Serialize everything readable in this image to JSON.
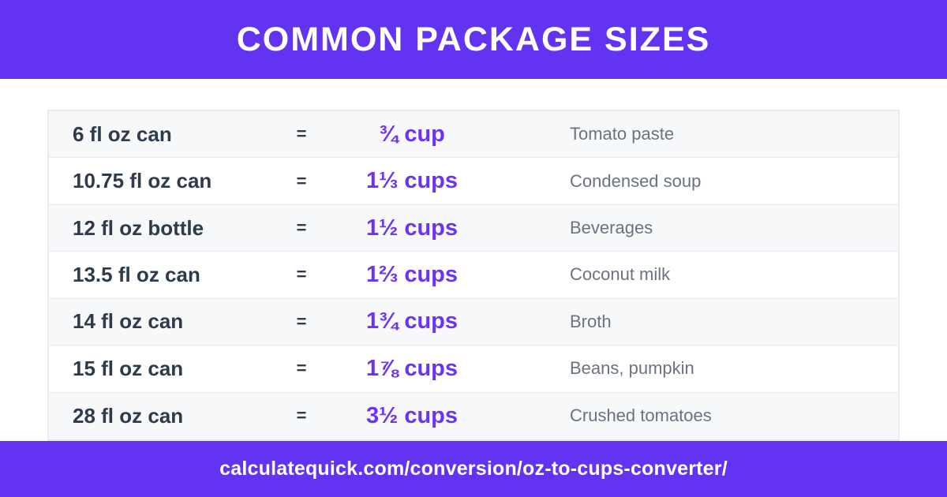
{
  "theme": {
    "primary": "#6233f0",
    "value_purple": "#6d33f3",
    "dark_text": "#2d3b4d",
    "muted_text": "#6b7280",
    "row_alt_bg": "#f7f8fa",
    "row_bg": "#ffffff",
    "border": "#e9ebee",
    "divider": "#e7e9ee"
  },
  "header": {
    "title": "COMMON PACKAGE SIZES"
  },
  "table": {
    "rows": [
      {
        "package": "6 fl oz can",
        "equals": "=",
        "cups": "¾ cup",
        "use": "Tomato paste"
      },
      {
        "package": "10.75 fl oz can",
        "equals": "=",
        "cups": "1⅓ cups",
        "use": "Condensed soup"
      },
      {
        "package": "12 fl oz bottle",
        "equals": "=",
        "cups": "1½ cups",
        "use": "Beverages"
      },
      {
        "package": "13.5 fl oz can",
        "equals": "=",
        "cups": "1⅔ cups",
        "use": "Coconut milk"
      },
      {
        "package": "14 fl oz can",
        "equals": "=",
        "cups": "1¾ cups",
        "use": "Broth"
      },
      {
        "package": "15 fl oz can",
        "equals": "=",
        "cups": "1⅞ cups",
        "use": "Beans, pumpkin"
      },
      {
        "package": "28 fl oz can",
        "equals": "=",
        "cups": "3½ cups",
        "use": "Crushed tomatoes"
      }
    ]
  },
  "footer": {
    "url": "calculatequick.com/conversion/oz-to-cups-converter/"
  },
  "chart_data": {
    "type": "table",
    "title": "COMMON PACKAGE SIZES",
    "rows": [
      {
        "package_label": "6 fl oz can",
        "fl_oz": 6,
        "cups_label": "¾ cup",
        "cups_value": 0.75,
        "contents": "Tomato paste"
      },
      {
        "package_label": "10.75 fl oz can",
        "fl_oz": 10.75,
        "cups_label": "1⅓ cups",
        "cups_value": 1.333,
        "contents": "Condensed soup"
      },
      {
        "package_label": "12 fl oz bottle",
        "fl_oz": 12,
        "cups_label": "1½ cups",
        "cups_value": 1.5,
        "contents": "Beverages"
      },
      {
        "package_label": "13.5 fl oz can",
        "fl_oz": 13.5,
        "cups_label": "1⅔ cups",
        "cups_value": 1.667,
        "contents": "Coconut milk"
      },
      {
        "package_label": "14 fl oz can",
        "fl_oz": 14,
        "cups_label": "1¾ cups",
        "cups_value": 1.75,
        "contents": "Broth"
      },
      {
        "package_label": "15 fl oz can",
        "fl_oz": 15,
        "cups_label": "1⅞ cups",
        "cups_value": 1.875,
        "contents": "Beans, pumpkin"
      },
      {
        "package_label": "28 fl oz can",
        "fl_oz": 28,
        "cups_label": "3½ cups",
        "cups_value": 3.5,
        "contents": "Crushed tomatoes"
      }
    ],
    "caption": "calculatequick.com/conversion/oz-to-cups-converter/"
  }
}
